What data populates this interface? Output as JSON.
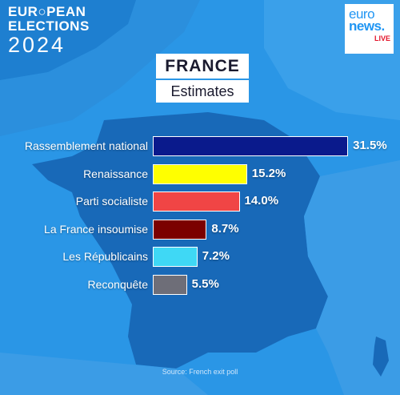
{
  "brand": {
    "line1": "EUR○PEAN",
    "line2": "ELECTIONS",
    "year": "2024"
  },
  "logo": {
    "word1": "euro",
    "word2": "news.",
    "live": "LIVE"
  },
  "header": {
    "title": "FRANCE",
    "subtitle": "Estimates"
  },
  "source": "Source: French exit poll",
  "chart_data": {
    "type": "bar",
    "orientation": "horizontal",
    "title": "FRANCE",
    "subtitle": "Estimates",
    "categories": [
      "Rassemblement national",
      "Renaissance",
      "Parti socialiste",
      "La France insoumise",
      "Les Républicains",
      "Reconquête"
    ],
    "values": [
      31.5,
      15.2,
      14.0,
      8.7,
      7.2,
      5.5
    ],
    "value_labels": [
      "31.5%",
      "15.2%",
      "14.0%",
      "8.7%",
      "7.2%",
      "5.5%"
    ],
    "colors": [
      "#0a1a8c",
      "#ffff00",
      "#f04545",
      "#7b0000",
      "#3fd8f5",
      "#6e6e78"
    ],
    "unit": "%",
    "grid": false,
    "legend": "none"
  }
}
